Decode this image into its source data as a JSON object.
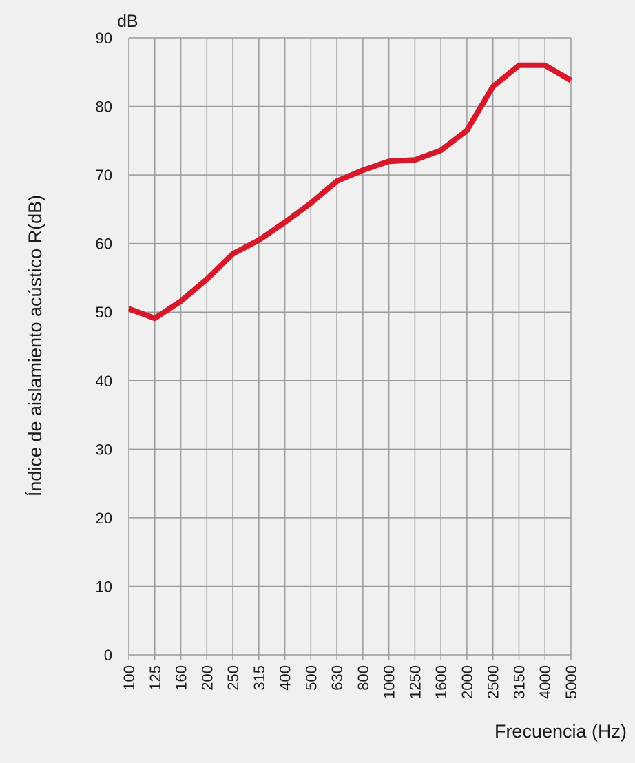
{
  "chart_data": {
    "type": "line",
    "title": "",
    "ylabel": "Índice de aislamiento acústico R(dB)",
    "y_unit": "dB",
    "xlabel": "Frecuencia (Hz)",
    "ylim": [
      0,
      90
    ],
    "y_ticks": [
      "0",
      "10",
      "20",
      "30",
      "40",
      "50",
      "60",
      "70",
      "80",
      "90"
    ],
    "categories": [
      "100",
      "125",
      "160",
      "200",
      "250",
      "315",
      "400",
      "500",
      "630",
      "800",
      "1000",
      "1250",
      "1600",
      "2000",
      "2500",
      "3150",
      "4000",
      "5000"
    ],
    "grid": true,
    "series": [
      {
        "color": "#d7182a",
        "values": [
          50.5,
          49.1,
          51.6,
          54.8,
          58.5,
          60.5,
          63.1,
          65.9,
          69.1,
          70.7,
          72.0,
          72.2,
          73.6,
          76.5,
          82.9,
          86.0,
          86.0,
          83.8
        ]
      }
    ]
  }
}
